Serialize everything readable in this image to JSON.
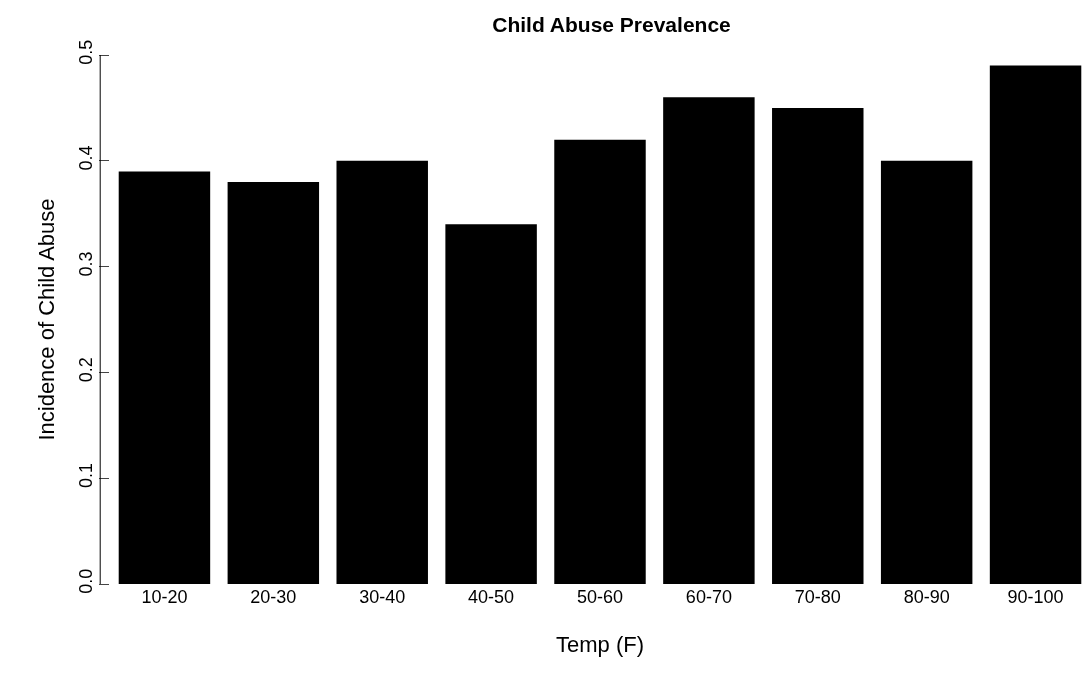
{
  "chart_data": {
    "type": "bar",
    "title": "Child Abuse Prevalence",
    "xlabel": "Temp (F)",
    "ylabel": "Incidence of Child Abuse",
    "categories": [
      "10-20",
      "20-30",
      "30-40",
      "40-50",
      "50-60",
      "60-70",
      "70-80",
      "80-90",
      "90-100"
    ],
    "values": [
      0.39,
      0.38,
      0.4,
      0.34,
      0.42,
      0.46,
      0.45,
      0.4,
      0.49
    ],
    "color": "#000000",
    "ylim": [
      0,
      0.5
    ],
    "yticks": [
      "0.0",
      0.1,
      0.2,
      0.3,
      0.4,
      0.5
    ],
    "grid": false,
    "legend": false
  }
}
